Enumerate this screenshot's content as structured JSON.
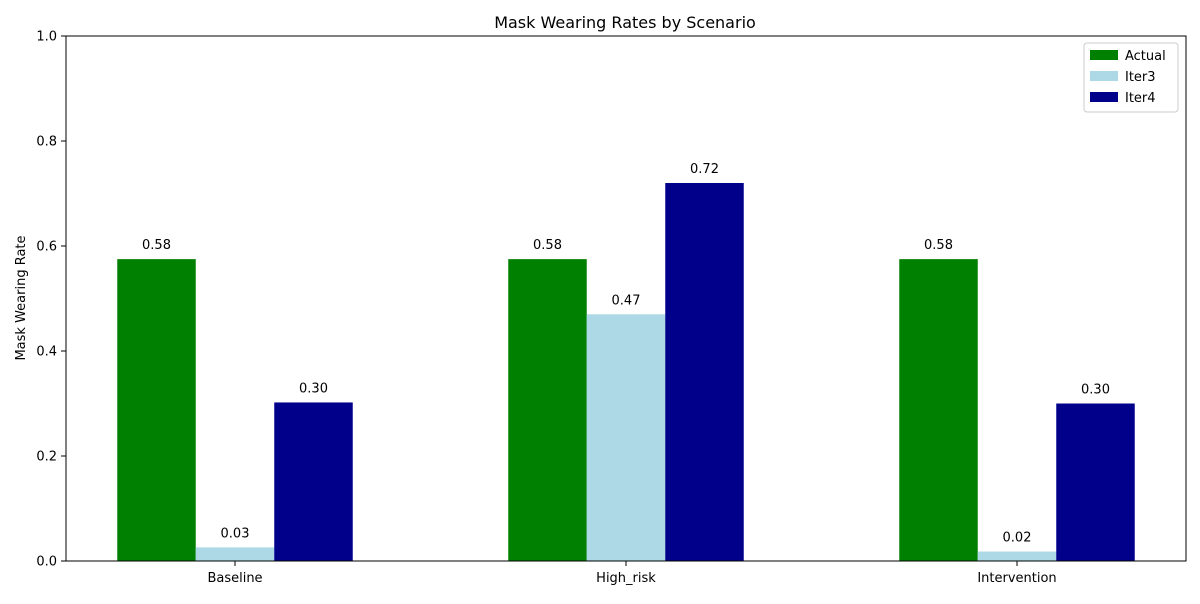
{
  "chart_data": {
    "type": "bar",
    "title": "Mask Wearing Rates by Scenario",
    "xlabel": "",
    "ylabel": "Mask Wearing Rate",
    "ylim": [
      0,
      1.0
    ],
    "yticks": [
      "0.0",
      "0.2",
      "0.4",
      "0.6",
      "0.8",
      "1.0"
    ],
    "categories": [
      "Baseline",
      "High_risk",
      "Intervention"
    ],
    "series": [
      {
        "name": "Actual",
        "color": "#008000",
        "values": [
          0.575,
          0.575,
          0.575
        ],
        "labels": [
          "0.58",
          "0.58",
          "0.58"
        ]
      },
      {
        "name": "Iter3",
        "color": "#add8e6",
        "values": [
          0.026,
          0.47,
          0.018
        ],
        "labels": [
          "0.03",
          "0.47",
          "0.02"
        ]
      },
      {
        "name": "Iter4",
        "color": "#00008b",
        "values": [
          0.302,
          0.72,
          0.3
        ],
        "labels": [
          "0.30",
          "0.72",
          "0.30"
        ]
      }
    ],
    "legend_position": "top-right",
    "grid": false
  }
}
